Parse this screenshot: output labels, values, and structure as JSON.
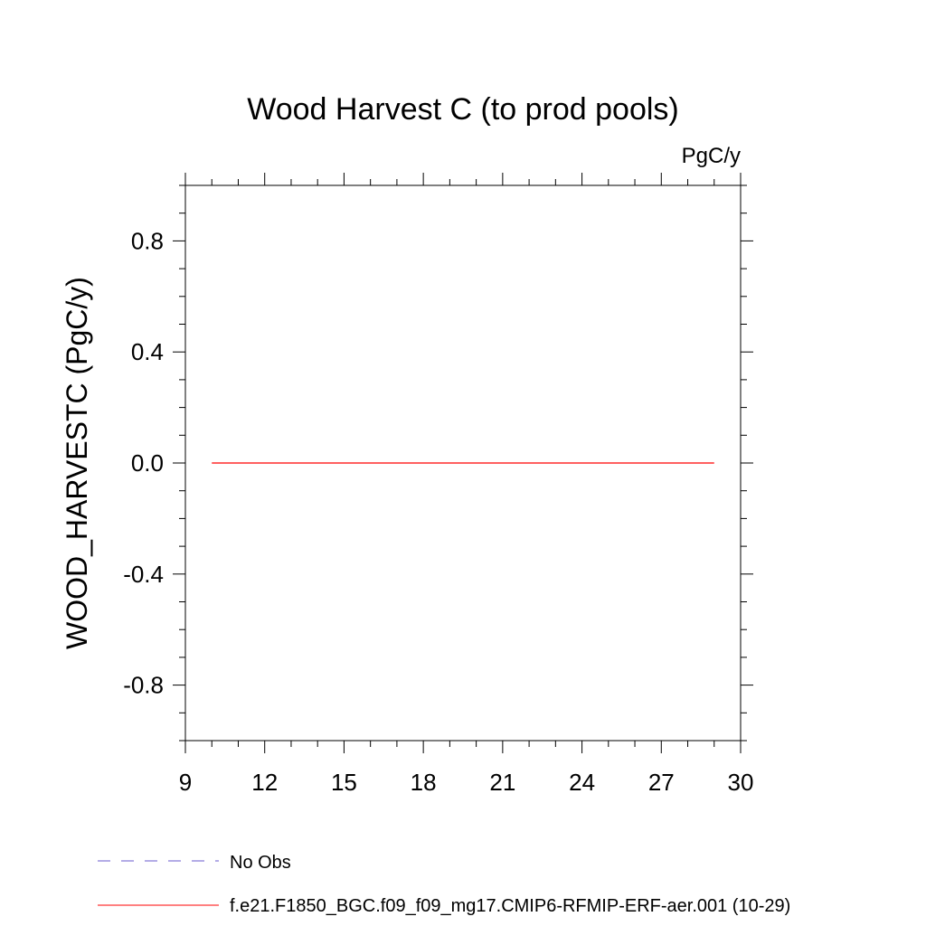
{
  "chart_data": {
    "type": "line",
    "title": "Wood Harvest C (to prod pools)",
    "units_label": "PgC/y",
    "ylabel": "WOOD_HARVESTC  (PgC/y)",
    "xlabel": "",
    "xlim": [
      9,
      30
    ],
    "ylim": [
      -1.0,
      1.0
    ],
    "x_ticks": [
      9,
      12,
      15,
      18,
      21,
      24,
      27,
      30
    ],
    "y_ticks": [
      -0.8,
      -0.4,
      0.0,
      0.4,
      0.8
    ],
    "x_tick_labels": [
      "9",
      "12",
      "15",
      "18",
      "21",
      "24",
      "27",
      "30"
    ],
    "y_tick_labels": [
      "-0.8",
      "-0.4",
      "0.0",
      "0.4",
      "0.8"
    ],
    "series": [
      {
        "name": "f.e21.F1850_BGC.f09_f09_mg17.CMIP6-RFMIP-ERF-aer.001 (10-29)",
        "color": "#ff0000",
        "x": [
          10,
          11,
          12,
          13,
          14,
          15,
          16,
          17,
          18,
          19,
          20,
          21,
          22,
          23,
          24,
          25,
          26,
          27,
          28,
          29
        ],
        "y": [
          0,
          0,
          0,
          0,
          0,
          0,
          0,
          0,
          0,
          0,
          0,
          0,
          0,
          0,
          0,
          0,
          0,
          0,
          0,
          0
        ]
      }
    ],
    "legend": [
      {
        "label": "No Obs",
        "color": "#6a5acd",
        "style": "dashed"
      },
      {
        "label": "f.e21.F1850_BGC.f09_f09_mg17.CMIP6-RFMIP-ERF-aer.001 (10-29)",
        "color": "#ff0000",
        "style": "solid"
      }
    ],
    "legend_position": "bottom-left",
    "grid": false
  }
}
